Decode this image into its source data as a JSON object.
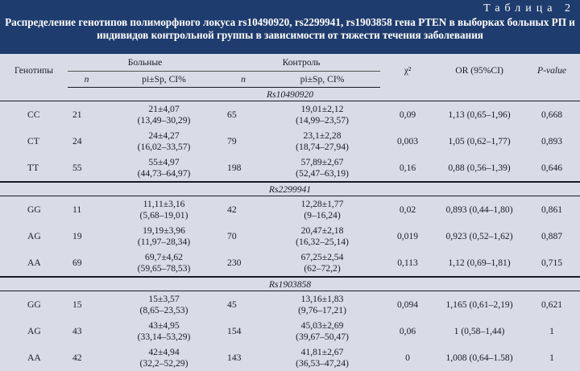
{
  "table_number": "Таблица 2",
  "title_line1": "Распределение генотипов полиморфного локуса rs10490920, rs2299941, rs1903858 гена PTEN в выборках больных РП и",
  "title_line2": "индивидов контрольной группы в зависимости от тяжести течения заболевания",
  "headers": {
    "genotypes": "Генотипы",
    "patients": "Больные",
    "control": "Контроль",
    "chi2": "χ²",
    "or": "OR (95%CI)",
    "pvalue": "P-value",
    "n": "n",
    "pi": "pi±Sp, CI%"
  },
  "groups": [
    {
      "locus": "Rs10490920",
      "rows": [
        {
          "genotype": "CC",
          "n1": "21",
          "p1a": "21±4,07",
          "p1b": "(13,49–30,29)",
          "n2": "65",
          "p2a": "19,01±2,12",
          "p2b": "(14,99–23,57)",
          "chi": "0,09",
          "or": "1,13 (0,65–1,96)",
          "p": "0,668"
        },
        {
          "genotype": "CT",
          "n1": "24",
          "p1a": "24±4,27",
          "p1b": "(16,02–33,57)",
          "n2": "79",
          "p2a": "23,1±2,28",
          "p2b": "(18,74–27,94)",
          "chi": "0,003",
          "or": "1,05 (0,62–1,77)",
          "p": "0,893"
        },
        {
          "genotype": "TT",
          "n1": "55",
          "p1a": "55±4,97",
          "p1b": "(44,73–64,97)",
          "n2": "198",
          "p2a": "57,89±2,67",
          "p2b": "(52,47–63,19)",
          "chi": "0,16",
          "or": "0,88 (0,56–1,39)",
          "p": "0,646"
        }
      ]
    },
    {
      "locus": "Rs2299941",
      "rows": [
        {
          "genotype": "GG",
          "n1": "11",
          "p1a": "11,11±3,16",
          "p1b": "(5,68–19,01)",
          "n2": "42",
          "p2a": "12,28±1,77",
          "p2b": "(9–16,24)",
          "chi": "0,02",
          "or": "0,893 (0,44–1,80)",
          "p": "0,861"
        },
        {
          "genotype": "AG",
          "n1": "19",
          "p1a": "19,19±3,96",
          "p1b": "(11,97–28,34)",
          "n2": "70",
          "p2a": "20,47±2,18",
          "p2b": "(16,32–25,14)",
          "chi": "0,019",
          "or": "0,923 (0,52–1,62)",
          "p": "0,887"
        },
        {
          "genotype": "AA",
          "n1": "69",
          "p1a": "69,7±4,62",
          "p1b": "(59,65–78,53)",
          "n2": "230",
          "p2a": "67,25±2,54",
          "p2b": "(62–72,2)",
          "chi": "0,113",
          "or": "1,12 (0,69–1,81)",
          "p": "0,715"
        }
      ]
    },
    {
      "locus": "Rs1903858",
      "rows": [
        {
          "genotype": "GG",
          "n1": "15",
          "p1a": "15±3,57",
          "p1b": "(8,65–23,53)",
          "n2": "45",
          "p2a": "13,16±1,83",
          "p2b": "(9,76–17,21)",
          "chi": "0,094",
          "or": "1,165 (0,61–2,19)",
          "p": "0,621"
        },
        {
          "genotype": "AG",
          "n1": "43",
          "p1a": "43±4,95",
          "p1b": "(33,14–53,29)",
          "n2": "154",
          "p2a": "45,03±2,69",
          "p2b": "(39,67–50,47)",
          "chi": "0,06",
          "or": "1 (0,58–1,44)",
          "p": "1"
        },
        {
          "genotype": "AA",
          "n1": "42",
          "p1a": "42±4,94",
          "p1b": "(32,2–52,29)",
          "n2": "143",
          "p2a": "41,81±2,67",
          "p2b": "(36,53–47,24)",
          "chi": "0",
          "or": "1,008 (0,64–1.58)",
          "p": "1"
        }
      ]
    }
  ]
}
